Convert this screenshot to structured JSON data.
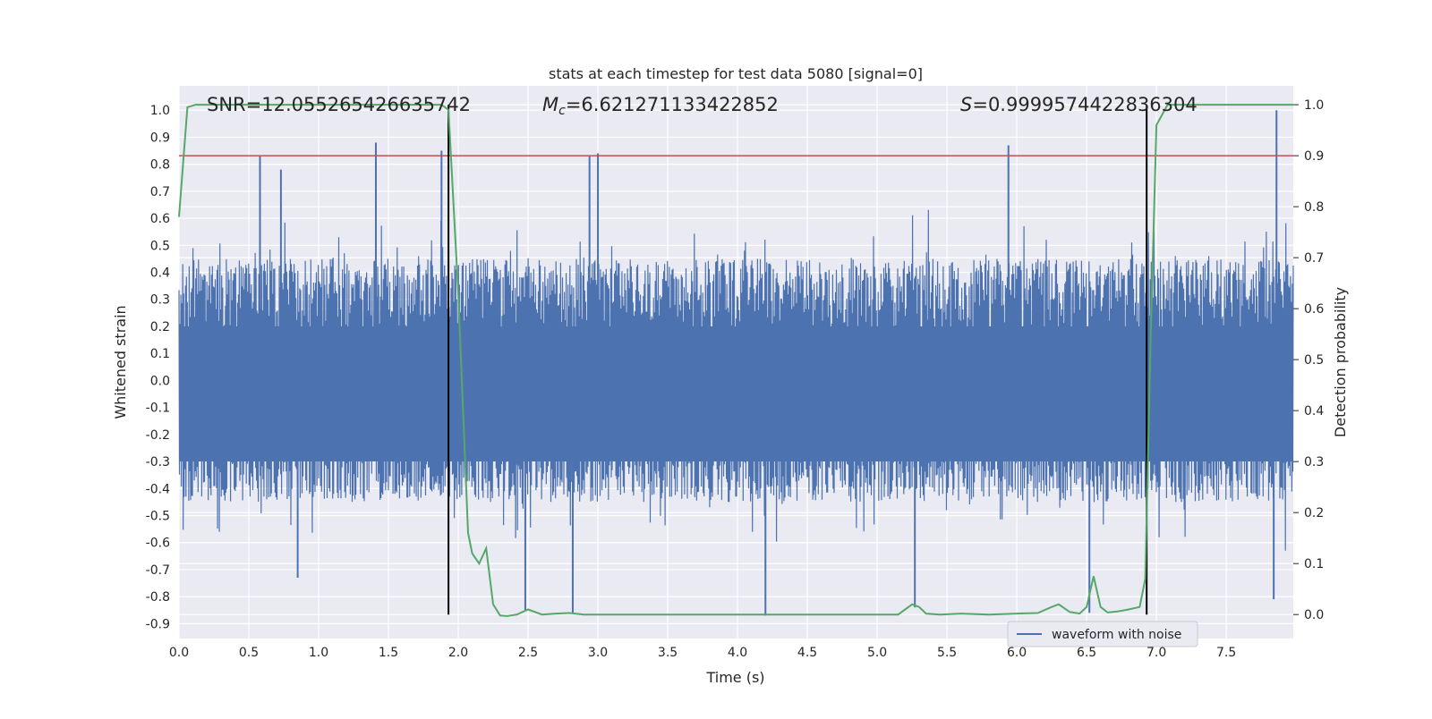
{
  "chart_data": {
    "type": "line",
    "title": "stats at each timestep for test data 5080 [signal=0]",
    "xlabel": "Time (s)",
    "ylabel": "Whitened strain",
    "y2label": "Detection probability",
    "xlim": [
      0.0,
      7.98
    ],
    "ylim": [
      -0.955,
      1.09
    ],
    "y2lim": [
      -0.047,
      1.037
    ],
    "x_ticks": [
      "0.0",
      "0.5",
      "1.0",
      "1.5",
      "2.0",
      "2.5",
      "3.0",
      "3.5",
      "4.0",
      "4.5",
      "5.0",
      "5.5",
      "6.0",
      "6.5",
      "7.0",
      "7.5"
    ],
    "y_ticks": [
      "1.0",
      "0.9",
      "0.8",
      "0.7",
      "0.6",
      "0.5",
      "0.4",
      "0.3",
      "0.2",
      "0.1",
      "0.0",
      "-0.1",
      "-0.2",
      "-0.3",
      "-0.4",
      "-0.5",
      "-0.6",
      "-0.7",
      "-0.8",
      "-0.9"
    ],
    "y2_ticks": [
      "1.0",
      "0.9",
      "0.8",
      "0.7",
      "0.6",
      "0.5",
      "0.4",
      "0.3",
      "0.2",
      "0.1",
      "0.0"
    ],
    "grid": true,
    "legend": {
      "position": "lower-right",
      "entries": [
        "waveform with noise"
      ]
    },
    "annotations": {
      "snr": "SNR=12.055265426635742",
      "mc_symbol": "M",
      "mc_sub": "c",
      "mc_value": "=6.621271133422852",
      "s_symbol": "S",
      "s_value": "=0.9999574422836304"
    },
    "threshold_line": {
      "y2": 0.9,
      "color": "#c44e52"
    },
    "vertical_lines": {
      "x": [
        1.93,
        6.93
      ],
      "color": "#000000"
    },
    "waveform": {
      "name": "waveform with noise",
      "color": "#4c72b0",
      "x_range": [
        0.0,
        7.98
      ],
      "envelope_upper_approx": 0.45,
      "envelope_lower_approx": -0.45,
      "peaks": [
        {
          "x": 0.58,
          "y": 0.83
        },
        {
          "x": 0.73,
          "y": 0.78
        },
        {
          "x": 1.41,
          "y": 0.88
        },
        {
          "x": 1.88,
          "y": 0.85
        },
        {
          "x": 2.94,
          "y": 0.83
        },
        {
          "x": 3.0,
          "y": 0.84
        },
        {
          "x": 5.94,
          "y": 0.87
        },
        {
          "x": 7.86,
          "y": 1.0
        }
      ],
      "troughs": [
        {
          "x": 0.85,
          "y": -0.73
        },
        {
          "x": 2.48,
          "y": -0.85
        },
        {
          "x": 2.82,
          "y": -0.86
        },
        {
          "x": 4.2,
          "y": -0.87
        },
        {
          "x": 5.27,
          "y": -0.84
        },
        {
          "x": 6.52,
          "y": -0.86
        },
        {
          "x": 7.84,
          "y": -0.81
        }
      ]
    },
    "probability": {
      "color": "#55a868",
      "x": [
        0.0,
        0.06,
        0.12,
        0.2,
        0.5,
        1.0,
        1.5,
        1.8,
        1.88,
        1.93,
        2.0,
        2.07,
        2.1,
        2.15,
        2.2,
        2.25,
        2.3,
        2.35,
        2.42,
        2.5,
        2.6,
        2.7,
        2.8,
        2.9,
        3.0,
        3.2,
        3.4,
        3.6,
        3.8,
        4.0,
        4.2,
        4.4,
        4.6,
        4.8,
        5.0,
        5.15,
        5.25,
        5.3,
        5.35,
        5.45,
        5.6,
        5.8,
        6.0,
        6.15,
        6.25,
        6.3,
        6.38,
        6.45,
        6.5,
        6.55,
        6.6,
        6.65,
        6.72,
        6.8,
        6.88,
        6.92,
        6.96,
        7.0,
        7.08,
        7.3,
        7.6,
        7.98
      ],
      "y": [
        0.78,
        0.995,
        1.0,
        1.0,
        1.0,
        1.0,
        1.0,
        1.0,
        1.0,
        0.99,
        0.63,
        0.16,
        0.12,
        0.1,
        0.13,
        0.02,
        -0.002,
        -0.003,
        0.0,
        0.01,
        0.0,
        0.002,
        0.003,
        0.0,
        0.0,
        0.0,
        0.0,
        0.0,
        0.0,
        0.0,
        0.0,
        0.0,
        0.0,
        0.0,
        0.0,
        0.0,
        0.02,
        0.015,
        0.002,
        0.0,
        0.002,
        0.0,
        0.002,
        0.003,
        0.015,
        0.02,
        0.005,
        0.002,
        0.015,
        0.075,
        0.015,
        0.004,
        0.006,
        0.01,
        0.015,
        0.07,
        0.56,
        0.96,
        1.0,
        1.0,
        1.0,
        1.0
      ]
    }
  }
}
